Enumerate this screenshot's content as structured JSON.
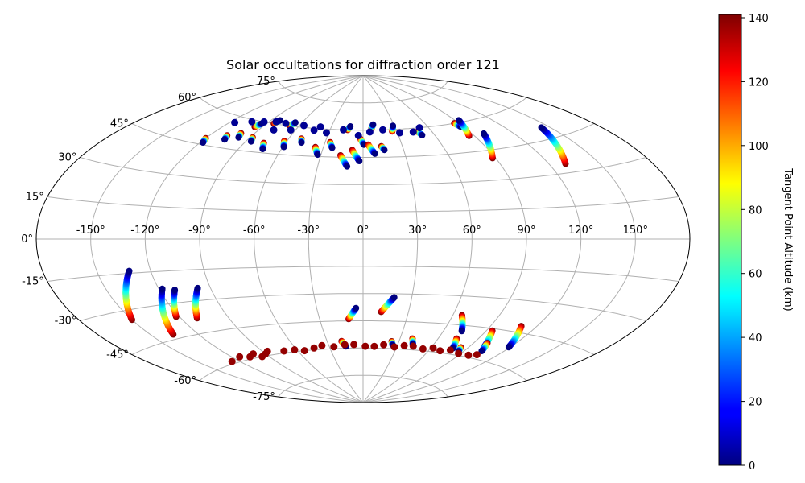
{
  "chart_data": {
    "type": "scatter",
    "projection": "aitoff",
    "title": "Solar occultations for diffraction order 121",
    "xlabel": "",
    "ylabel": "",
    "lon_ticks": [
      -150,
      -120,
      -90,
      -60,
      -30,
      0,
      30,
      60,
      90,
      120,
      150
    ],
    "lon_tick_labels": [
      "-150°",
      "-120°",
      "-90°",
      "-60°",
      "-30°",
      "0°",
      "30°",
      "60°",
      "90°",
      "120°",
      "150°"
    ],
    "lat_ticks": [
      -75,
      -60,
      -45,
      -30,
      -15,
      0,
      15,
      30,
      45,
      60,
      75
    ],
    "lat_tick_labels": [
      "-75°",
      "-60°",
      "-45°",
      "-30°",
      "-15°",
      "0°",
      "15°",
      "30°",
      "45°",
      "60°",
      "75°"
    ],
    "grid": true,
    "colorbar": {
      "label": "Tangent Point Altitude (km)",
      "colormap": "jet",
      "range": [
        0,
        141
      ],
      "ticks": [
        0,
        20,
        40,
        60,
        80,
        100,
        120,
        140
      ],
      "tick_labels": [
        "0",
        "20",
        "40",
        "60",
        "80",
        "100",
        "120",
        "140"
      ]
    },
    "north_tracks": [
      {
        "lon": -120,
        "lat": 48,
        "len": 2,
        "dir": -1
      },
      {
        "lon": -108,
        "lat": 51,
        "len": 2,
        "dir": -1
      },
      {
        "lon": -100,
        "lat": 53,
        "len": 2,
        "dir": -1
      },
      {
        "lon": -96,
        "lat": 57,
        "len": 2,
        "dir": 1
      },
      {
        "lon": -88,
        "lat": 52,
        "len": 2,
        "dir": -1
      },
      {
        "lon": -76,
        "lat": 50,
        "len": 3,
        "dir": -1
      },
      {
        "lon": -62,
        "lat": 52,
        "len": 3,
        "dir": -1
      },
      {
        "lon": -50,
        "lat": 54,
        "len": 2,
        "dir": -1
      },
      {
        "lon": -84,
        "lat": 60,
        "len": 2,
        "dir": 1
      },
      {
        "lon": -68,
        "lat": 60,
        "len": 2,
        "dir": 1
      },
      {
        "lon": -36,
        "lat": 50,
        "len": 4,
        "dir": -1
      },
      {
        "lon": -26,
        "lat": 53,
        "len": 3,
        "dir": -1
      },
      {
        "lon": -16,
        "lat": 46,
        "len": 6,
        "dir": -1
      },
      {
        "lon": -8,
        "lat": 49,
        "len": 6,
        "dir": -1
      },
      {
        "lon": -2,
        "lat": 55,
        "len": 3,
        "dir": -1
      },
      {
        "lon": 4,
        "lat": 52,
        "len": 5,
        "dir": -1
      },
      {
        "lon": 14,
        "lat": 51,
        "len": 2,
        "dir": -1
      },
      {
        "lon": 26,
        "lat": 59,
        "len": 3,
        "dir": 1
      },
      {
        "lon": -14,
        "lat": 60,
        "len": 2,
        "dir": 1
      },
      {
        "lon": 8,
        "lat": 61,
        "len": 2,
        "dir": 1
      },
      {
        "lon": 48,
        "lat": 58,
        "len": 2,
        "dir": -1
      },
      {
        "lon": 86,
        "lat": 60,
        "len": 2,
        "dir": -1
      },
      {
        "lon": 86,
        "lat": 53,
        "len": 8,
        "dir": 1
      },
      {
        "lon": 88,
        "lat": 41,
        "len": 12,
        "dir": 1
      },
      {
        "lon": 130,
        "lat": 34,
        "len": 16,
        "dir": 1
      }
    ],
    "north_dots": [
      [
        -116,
        57
      ],
      [
        -104,
        59
      ],
      [
        -94,
        60
      ],
      [
        -84,
        61
      ],
      [
        -74,
        61
      ],
      [
        -64,
        58
      ],
      [
        -56,
        61
      ],
      [
        -44,
        59
      ],
      [
        -32,
        58
      ],
      [
        -18,
        60
      ],
      [
        -4,
        57
      ],
      [
        6,
        59
      ],
      [
        18,
        60
      ],
      [
        32,
        58
      ],
      [
        44,
        58
      ],
      [
        52,
        60
      ],
      [
        -40,
        61
      ],
      [
        -78,
        57
      ]
    ],
    "south_tracks": [
      {
        "lon": -150,
        "lat": -34,
        "len": 20,
        "dir": 1
      },
      {
        "lon": -136,
        "lat": -43,
        "len": 20,
        "dir": 1
      },
      {
        "lon": -122,
        "lat": -36,
        "len": 12,
        "dir": 1
      },
      {
        "lon": -110,
        "lat": -38,
        "len": 14,
        "dir": 1
      },
      {
        "lon": -10,
        "lat": -44,
        "len": 6,
        "dir": 1
      },
      {
        "lon": 12,
        "lat": -40,
        "len": 8,
        "dir": 1
      },
      {
        "lon": 66,
        "lat": -40,
        "len": 8,
        "dir": -1
      },
      {
        "lon": 74,
        "lat": -52,
        "len": 5,
        "dir": -1
      },
      {
        "lon": 94,
        "lat": -46,
        "len": 8,
        "dir": -1
      },
      {
        "lon": 110,
        "lat": -42,
        "len": 10,
        "dir": -1
      },
      {
        "lon": 100,
        "lat": -52,
        "len": 4,
        "dir": -1
      },
      {
        "lon": -18,
        "lat": -56,
        "len": 3,
        "dir": -1
      },
      {
        "lon": 40,
        "lat": -54,
        "len": 3,
        "dir": -1
      },
      {
        "lon": 24,
        "lat": -56,
        "len": 2,
        "dir": -1
      },
      {
        "lon": 84,
        "lat": -56,
        "len": 2,
        "dir": -1
      }
    ],
    "south_dots": [
      [
        -126,
        -59
      ],
      [
        -114,
        -58
      ],
      [
        -106,
        -59
      ],
      [
        -96,
        -60
      ],
      [
        -86,
        -58
      ],
      [
        -72,
        -59
      ],
      [
        -62,
        -59
      ],
      [
        -54,
        -60
      ],
      [
        -44,
        -59
      ],
      [
        -36,
        -58
      ],
      [
        -26,
        -59
      ],
      [
        -16,
        -58
      ],
      [
        -8,
        -58
      ],
      [
        2,
        -59
      ],
      [
        10,
        -59
      ],
      [
        18,
        -58
      ],
      [
        28,
        -59
      ],
      [
        36,
        -58
      ],
      [
        44,
        -58
      ],
      [
        54,
        -59
      ],
      [
        62,
        -58
      ],
      [
        70,
        -59
      ],
      [
        78,
        -58
      ],
      [
        88,
        -59
      ],
      [
        98,
        -59
      ],
      [
        104,
        -58
      ],
      [
        -90,
        -59
      ],
      [
        -100,
        -58
      ]
    ]
  }
}
